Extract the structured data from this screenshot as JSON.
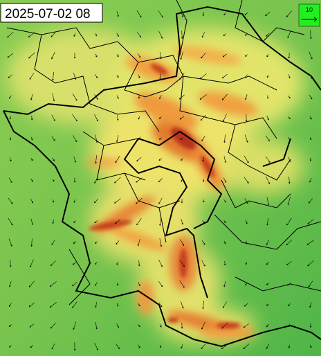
{
  "timestamp": "2025-07-02 08",
  "wind_legend": {
    "label": "10"
  }
}
